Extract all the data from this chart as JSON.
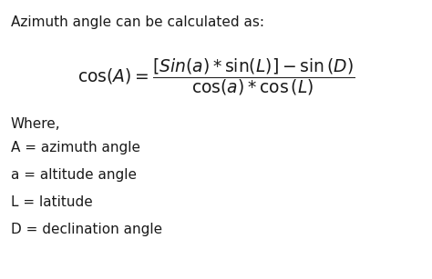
{
  "background_color": "#ffffff",
  "title_text": "Azimuth angle can be calculated as:",
  "title_fontsize": 11.0,
  "formula_fontsize": 13.5,
  "body_fontsize": 11.0,
  "text_color": "#1a1a1a",
  "where_text": "Where,",
  "definitions": [
    "A = azimuth angle",
    "a = altitude angle",
    "L = latitude",
    "D = declination angle"
  ]
}
